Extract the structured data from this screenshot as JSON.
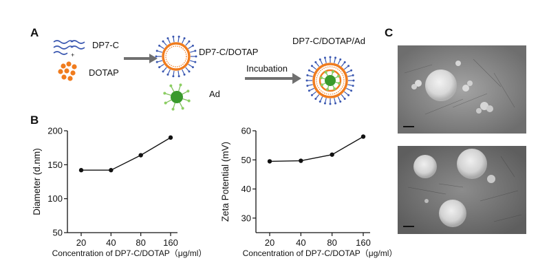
{
  "panels": {
    "a": "A",
    "b": "B",
    "c": "C"
  },
  "schematic": {
    "dp7c": "DP7-C",
    "plus": "+",
    "dotap": "DOTAP",
    "complex": "DP7-C/DOTAP",
    "ad": "Ad",
    "incubation": "Incubation",
    "final_complex": "DP7-C/DOTAP/Ad"
  },
  "colors": {
    "lipid_orange": "#f07c1e",
    "peptide_blue": "#3a57b0",
    "virus_green": "#3a9a2c",
    "arrow_gray": "#707070",
    "line_black": "#111111"
  },
  "chart_data": [
    {
      "type": "line",
      "categories": [
        "20",
        "40",
        "80",
        "160"
      ],
      "values": [
        142,
        142,
        164,
        190
      ],
      "ylabel": "Diameter (d.nm)",
      "xlabel": "Concentration of DP7-C/DOTAP（μg/ml）",
      "ylim": [
        50,
        200
      ],
      "yticks": [
        50,
        100,
        150,
        200
      ],
      "grid": false
    },
    {
      "type": "line",
      "categories": [
        "20",
        "40",
        "80",
        "160"
      ],
      "values": [
        49.5,
        49.7,
        51.8,
        58
      ],
      "ylabel": "Zeta Potential (mV)",
      "xlabel": "Concentration of DP7-C/DOTAP（μg/ml）",
      "ylim": [
        25,
        60
      ],
      "yticks": [
        30,
        40,
        50,
        60
      ],
      "grid": false
    }
  ]
}
